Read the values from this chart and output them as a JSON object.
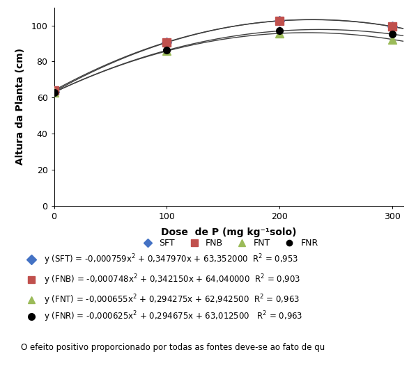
{
  "xlabel": "Dose  de P (mg kg⁻¹solo)",
  "ylabel": "Altura da Planta (cm)",
  "xlim": [
    0,
    310
  ],
  "ylim": [
    0,
    110
  ],
  "xticks": [
    0,
    100,
    200,
    300
  ],
  "yticks": [
    0,
    20,
    40,
    60,
    80,
    100
  ],
  "doses": [
    0,
    100,
    200,
    300
  ],
  "series": {
    "SFT": {
      "color": "#4472C4",
      "marker": "D",
      "markersize": 7,
      "a": -0.000759,
      "b": 0.34797,
      "c": 63.352,
      "label": "SFT"
    },
    "FNB": {
      "color": "#C0504D",
      "marker": "s",
      "markersize": 8,
      "a": -0.000748,
      "b": 0.34215,
      "c": 64.04,
      "label": "FNB"
    },
    "FNT": {
      "color": "#9BBB59",
      "marker": "^",
      "markersize": 8,
      "a": -0.000655,
      "b": 0.294275,
      "c": 62.9425,
      "label": "FNT"
    },
    "FNR": {
      "color": "#000000",
      "marker": "o",
      "markersize": 7,
      "a": -0.000625,
      "b": 0.294675,
      "c": 63.0125,
      "label": "FNR"
    }
  },
  "line_color": "#404040",
  "background_color": "#ffffff",
  "legend_order": [
    "SFT",
    "FNB",
    "FNT",
    "FNR"
  ],
  "eq_labels": [
    [
      "SFT",
      "y (SFT) = -0,000759x",
      "2",
      " + 0,347970x + 63,352000  R",
      "2",
      " = 0,953"
    ],
    [
      "FNB",
      "y (FNB) = -0,000748x",
      "2",
      " + 0,342150x + 64,040000  R",
      "2",
      " = 0,903"
    ],
    [
      "FNT",
      "y (FNT) = -0,000655x",
      "2",
      " + 0,294275x + 62,942500  R",
      "2",
      " = 0,963"
    ],
    [
      "FNR",
      "y (FNR) = -0,000625x",
      "2",
      " + 0,294675x + 63,012500   R",
      "2",
      " = 0,963"
    ]
  ],
  "bottom_text": "O efeito positivo proporcionado por todas as fontes deve-se ao fato de qu"
}
